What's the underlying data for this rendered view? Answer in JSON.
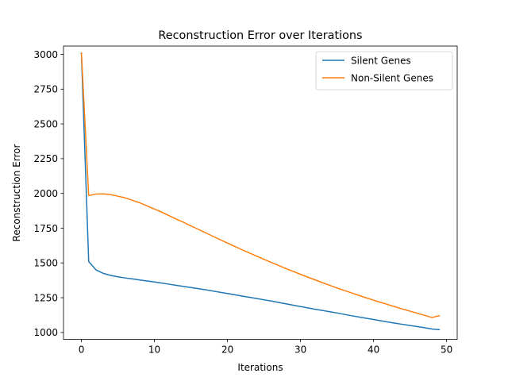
{
  "chart_data": {
    "type": "line",
    "title": "Reconstruction Error over Iterations",
    "xlabel": "Iterations",
    "ylabel": "Reconstruction Error",
    "xlim": [
      -2.45,
      51.45
    ],
    "ylim": [
      950,
      3060
    ],
    "xticks": [
      0,
      10,
      20,
      30,
      40,
      50
    ],
    "xtick_labels": [
      "0",
      "10",
      "20",
      "30",
      "40",
      "50"
    ],
    "yticks": [
      1000,
      1250,
      1500,
      1750,
      2000,
      2250,
      2500,
      2750,
      3000
    ],
    "ytick_labels": [
      "1000",
      "1250",
      "1500",
      "1750",
      "2000",
      "2250",
      "2500",
      "2750",
      "3000"
    ],
    "grid": false,
    "legend_position": "upper right",
    "x": [
      0,
      1,
      2,
      3,
      4,
      5,
      6,
      7,
      8,
      9,
      10,
      11,
      12,
      13,
      14,
      15,
      16,
      17,
      18,
      19,
      20,
      21,
      22,
      23,
      24,
      25,
      26,
      27,
      28,
      29,
      30,
      31,
      32,
      33,
      34,
      35,
      36,
      37,
      38,
      39,
      40,
      41,
      42,
      43,
      44,
      45,
      46,
      47,
      48,
      49
    ],
    "series": [
      {
        "name": "Silent Genes",
        "color": "#1f77b4",
        "values": [
          3010,
          1510,
          1450,
          1425,
          1410,
          1400,
          1392,
          1385,
          1377,
          1370,
          1363,
          1355,
          1347,
          1339,
          1331,
          1323,
          1315,
          1307,
          1298,
          1289,
          1280,
          1271,
          1262,
          1253,
          1244,
          1235,
          1226,
          1216,
          1206,
          1196,
          1186,
          1177,
          1167,
          1158,
          1149,
          1140,
          1130,
          1120,
          1111,
          1102,
          1093,
          1084,
          1075,
          1066,
          1058,
          1050,
          1042,
          1034,
          1025,
          1020
        ]
      },
      {
        "name": "Non-Silent Genes",
        "color": "#ff7f0e",
        "values": [
          3010,
          1985,
          1995,
          1997,
          1992,
          1980,
          1968,
          1950,
          1932,
          1910,
          1888,
          1865,
          1840,
          1815,
          1792,
          1766,
          1742,
          1717,
          1692,
          1667,
          1643,
          1619,
          1595,
          1572,
          1549,
          1526,
          1504,
          1482,
          1460,
          1439,
          1418,
          1398,
          1378,
          1358,
          1339,
          1320,
          1302,
          1284,
          1266,
          1249,
          1232,
          1216,
          1200,
          1184,
          1168,
          1153,
          1138,
          1123,
          1108,
          1120
        ]
      }
    ]
  }
}
